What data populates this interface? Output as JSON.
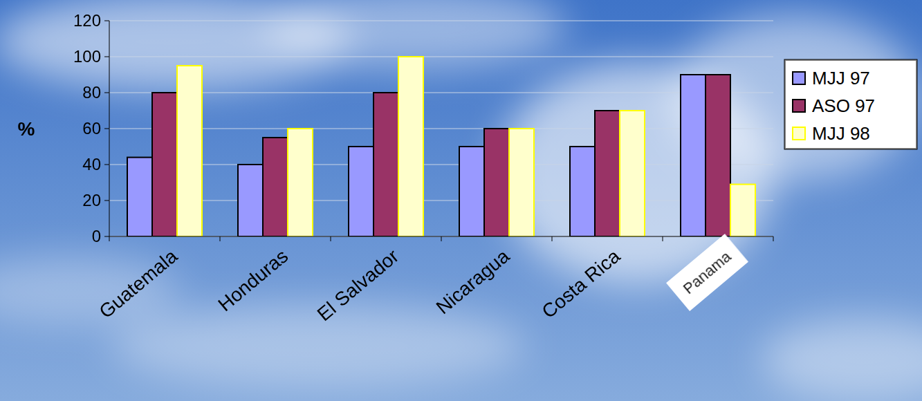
{
  "chart_data": {
    "type": "bar",
    "categories": [
      "Guatemala",
      "Honduras",
      "El Salvador",
      "Nicaragua",
      "Costa Rica",
      "Panama"
    ],
    "series": [
      {
        "name": "MJJ 97",
        "color": "#9999ff",
        "values": [
          44,
          40,
          50,
          50,
          50,
          90
        ]
      },
      {
        "name": "ASO 97",
        "color": "#993366",
        "values": [
          80,
          55,
          80,
          60,
          70,
          90
        ]
      },
      {
        "name": "MJJ 98",
        "color": "#ffffcc",
        "values": [
          95,
          60,
          100,
          60,
          70,
          29
        ]
      }
    ],
    "y_label": "%",
    "ylim": [
      0,
      120
    ],
    "yticks": [
      0,
      20,
      40,
      60,
      80,
      100,
      120
    ],
    "grid": true,
    "legend": "right"
  }
}
